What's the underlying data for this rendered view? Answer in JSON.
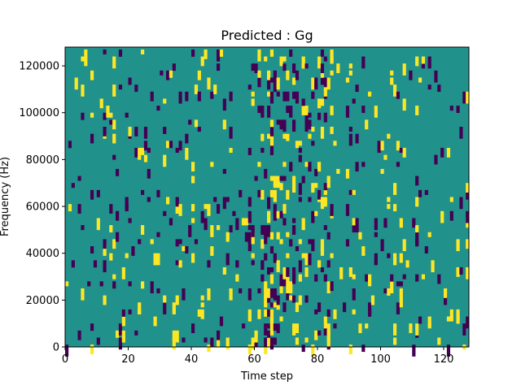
{
  "chart_data": {
    "type": "heatmap",
    "title": "Predicted : Gg",
    "xlabel": "Time step",
    "ylabel": "Frequency (Hz)",
    "xlim": [
      0,
      128
    ],
    "ylim": [
      0,
      128000
    ],
    "x_ticks": [
      0,
      20,
      40,
      60,
      80,
      100,
      120
    ],
    "y_ticks": [
      0,
      20000,
      40000,
      60000,
      80000,
      100000,
      120000
    ],
    "n_time_steps": 128,
    "n_freq_bins": 128,
    "colormap": {
      "background": "#21918c",
      "low": "#440154",
      "high": "#fde725"
    },
    "grid": false,
    "legend": "none"
  }
}
